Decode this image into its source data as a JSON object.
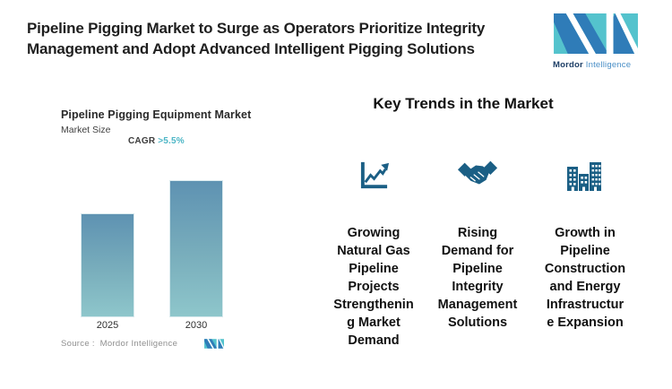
{
  "header": {
    "title": "Pipeline Pigging Market to Surge as Operators Prioritize Integrity\nManagement and Adopt Advanced Intelligent Pigging Solutions",
    "brand": {
      "name_bold": "Mordor",
      "name_light": "Intelligence"
    }
  },
  "chart": {
    "title": "Pipeline Pigging Equipment Market",
    "subtitle": "Market Size",
    "cagr_label": "CAGR ",
    "cagr_value": ">5.5%",
    "source": "Source :  Mordor Intelligence"
  },
  "chart_data": {
    "type": "bar",
    "title": "Pipeline Pigging Equipment Market",
    "subtitle": "Market Size",
    "annotation": "CAGR >5.5%",
    "categories": [
      "2025",
      "2030"
    ],
    "values": [
      100,
      132
    ],
    "values_note": "relative heights; no numeric axis labels shown",
    "xlabel": "",
    "ylabel": "Market Size",
    "grid": false,
    "legend": false,
    "bar_gradient": [
      "#5e92b2",
      "#8ec6cb"
    ]
  },
  "trends": {
    "heading": "Key Trends in the Market",
    "items": [
      {
        "icon": "growth-chart-icon",
        "label": "Growing\nNatural Gas\nPipeline\nProjects\nStrengthenin\ng Market\nDemand"
      },
      {
        "icon": "handshake-icon",
        "label": "Rising\nDemand for\nPipeline\nIntegrity\nManagement\nSolutions"
      },
      {
        "icon": "buildings-icon",
        "label": "Growth in\nPipeline\nConstruction\nand Energy\nInfrastructur\ne Expansion"
      }
    ]
  },
  "colors": {
    "accent_teal": "#4db6c6",
    "icon_blue": "#1b5f85",
    "logo_blue": "#2f7cb8",
    "logo_teal": "#54c3cd",
    "title_text": "#1f1f1f"
  }
}
